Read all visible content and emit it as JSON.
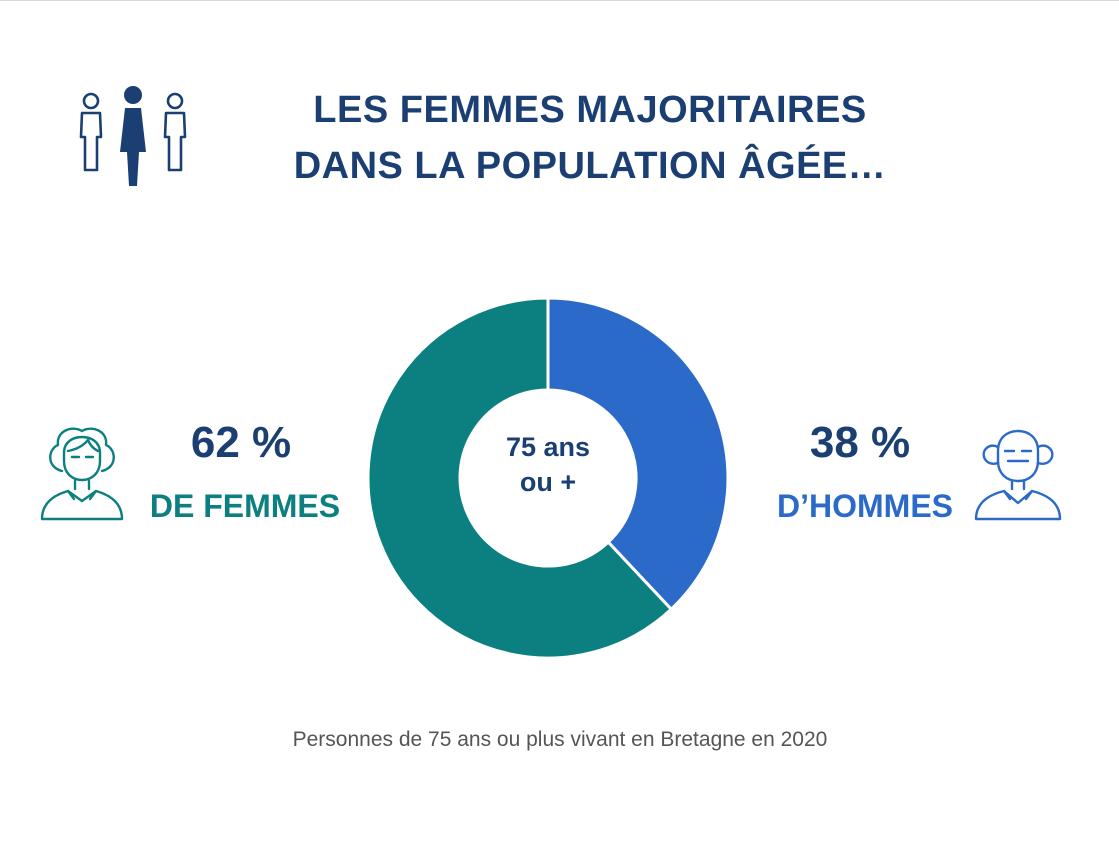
{
  "colors": {
    "title": "#1b3f73",
    "femmes": "#0c7f80",
    "hommes": "#2b6ac9",
    "caption": "#555555"
  },
  "icons": {
    "header": "people-group-icon",
    "femmes": "elderly-woman-icon",
    "hommes": "elderly-man-icon"
  },
  "title": {
    "line1": "LES FEMMES MAJORITAIRES",
    "line2": "DANS LA POPULATION ÂGÉE…"
  },
  "femmes": {
    "percent": "62 %",
    "label": "DE FEMMES"
  },
  "hommes": {
    "percent": "38 %",
    "label": "D’HOMMES"
  },
  "center": {
    "line1": "75 ans",
    "line2": "ou +"
  },
  "caption": "Personnes de 75 ans ou plus vivant en Bretagne en 2020",
  "chart_data": {
    "type": "pie",
    "title": "LES FEMMES MAJORITAIRES DANS LA POPULATION ÂGÉE…",
    "subtitle": "Personnes de 75 ans ou plus vivant en Bretagne en 2020",
    "categories": [
      "D’HOMMES",
      "DE FEMMES"
    ],
    "values": [
      38,
      62
    ],
    "unit": "%",
    "colors": [
      "#2b6ac9",
      "#0c7f80"
    ],
    "center_label": "75 ans ou +",
    "donut": true
  }
}
